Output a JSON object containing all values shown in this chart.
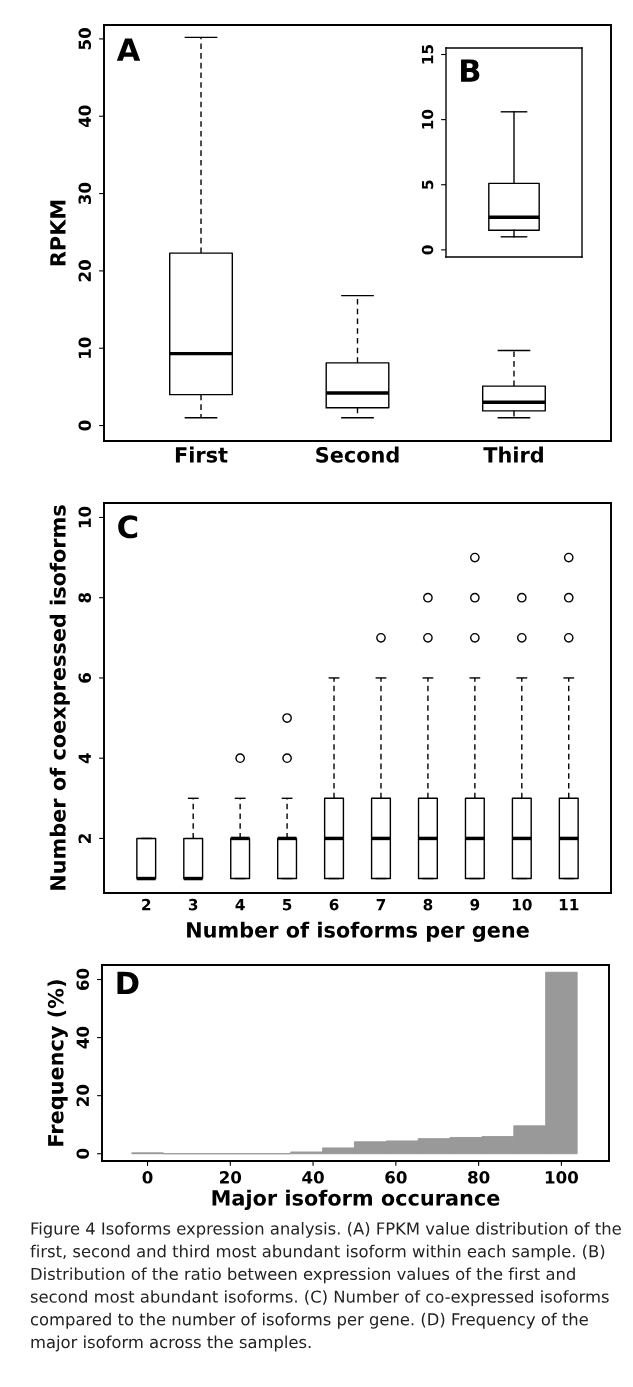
{
  "chart_data": [
    {
      "type": "box",
      "ylabel": "RPKM",
      "categories": [
        "First",
        "Second",
        "Third"
      ],
      "line_style": "dashed",
      "ylim": [
        -2,
        51.8
      ],
      "yticks": [
        0,
        10,
        20,
        30,
        40,
        50
      ],
      "annotations": [
        "A"
      ],
      "boxes": [
        {
          "low": 1.0,
          "q1": 4.0,
          "median": 9.3,
          "q3": 22.3,
          "high": 50.2
        },
        {
          "low": 1.0,
          "q1": 2.3,
          "median": 4.2,
          "q3": 8.1,
          "high": 16.8
        },
        {
          "low": 1.0,
          "q1": 1.9,
          "median": 3.0,
          "q3": 5.1,
          "high": 9.7
        }
      ]
    },
    {
      "type": "box",
      "categories": [
        null
      ],
      "line_style": "solid",
      "tick_labels": "y",
      "ylim": [
        -0.55,
        15.5
      ],
      "yticks": [
        0,
        5,
        10,
        15
      ],
      "annotations": [
        "B"
      ],
      "boxes": [
        {
          "low": 1.0,
          "q1": 1.5,
          "median": 2.5,
          "q3": 5.1,
          "high": 10.6
        }
      ]
    },
    {
      "type": "box",
      "xlabel": "Number of isoforms per gene",
      "ylabel": "Number of coexpressed isoforms",
      "categories": [
        "2",
        "3",
        "4",
        "5",
        "6",
        "7",
        "8",
        "9",
        "10",
        "11"
      ],
      "line_style": "dashed",
      "ylim": [
        0.64,
        10.36
      ],
      "yticks": [
        2,
        4,
        6,
        8,
        10
      ],
      "annotations": [
        "C"
      ],
      "boxes": [
        {
          "low": 1,
          "q1": 1,
          "median": 1,
          "q3": 2,
          "high": 2
        },
        {
          "low": 1,
          "q1": 1,
          "median": 1,
          "q3": 2,
          "high": 3
        },
        {
          "low": 1,
          "q1": 1,
          "median": 2,
          "q3": 2,
          "high": 3,
          "outliers": [
            4
          ]
        },
        {
          "low": 1,
          "q1": 1,
          "median": 2,
          "q3": 2,
          "high": 3,
          "outliers": [
            4,
            5
          ]
        },
        {
          "low": 1,
          "q1": 1,
          "median": 2,
          "q3": 3,
          "high": 6
        },
        {
          "low": 1,
          "q1": 1,
          "median": 2,
          "q3": 3,
          "high": 6,
          "outliers": [
            7
          ]
        },
        {
          "low": 1,
          "q1": 1,
          "median": 2,
          "q3": 3,
          "high": 6,
          "outliers": [
            7,
            8
          ]
        },
        {
          "low": 1,
          "q1": 1,
          "median": 2,
          "q3": 3,
          "high": 6,
          "outliers": [
            7,
            8,
            9
          ]
        },
        {
          "low": 1,
          "q1": 1,
          "median": 2,
          "q3": 3,
          "high": 6,
          "outliers": [
            7,
            8
          ]
        },
        {
          "low": 1,
          "q1": 1,
          "median": 2,
          "q3": 3,
          "high": 6,
          "outliers": [
            7,
            8,
            9
          ]
        }
      ]
    },
    {
      "type": "histogram",
      "xlabel": "Major isoform occurance",
      "ylabel": "Frequency (%)",
      "color": "#999999",
      "bins": [
        -3.8,
        3.8,
        11.5,
        19.2,
        26.9,
        34.6,
        42.3,
        50.0,
        57.7,
        65.4,
        73.1,
        80.8,
        88.5,
        96.2,
        103.8
      ],
      "values": [
        0.3,
        0,
        0,
        0,
        0,
        0.6,
        2.0,
        4.1,
        4.4,
        5.2,
        5.6,
        5.9,
        9.6,
        62.5
      ],
      "xlim": [
        -11,
        111.5
      ],
      "xticks": [
        0,
        20,
        40,
        60,
        80,
        100
      ],
      "ylim": [
        -2.5,
        65
      ],
      "yticks": [
        0,
        20,
        40,
        60
      ],
      "annotations": [
        "D",
        "Figure 4 Isoforms expression analysis. (A) FPKM value distribution of the first, second and third most abundant isoform within each sample. (B) Distribution of the ratio between expression values of the first and second most abundant isoforms. (C) Number of co-expressed isoforms compared to the number of isoforms per gene. (D) Frequency of the major isoform across the samples."
      ]
    }
  ]
}
